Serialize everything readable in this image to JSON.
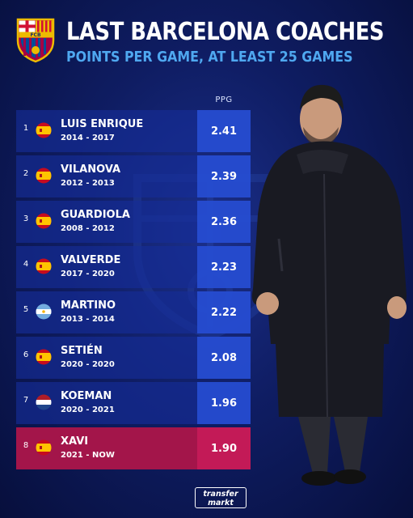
{
  "header": {
    "title": "LAST BARCELONA COACHES",
    "subtitle": "POINTS PER GAME, AT LEAST 25 GAMES",
    "crest_text": "FCB"
  },
  "table": {
    "ppg_header": "PPG"
  },
  "chart_data": {
    "type": "table",
    "title": "LAST BARCELONA COACHES",
    "subtitle": "POINTS PER GAME, AT LEAST 25 GAMES",
    "columns": [
      "PPG"
    ],
    "rows": [
      {
        "rank": "1",
        "name": "LUIS ENRIQUE",
        "years": "2014 - 2017",
        "ppg": "2.41",
        "flag": "spain-flag-icon",
        "highlight": false
      },
      {
        "rank": "2",
        "name": "VILANOVA",
        "years": "2012 - 2013",
        "ppg": "2.39",
        "flag": "spain-flag-icon",
        "highlight": false
      },
      {
        "rank": "3",
        "name": "GUARDIOLA",
        "years": "2008 - 2012",
        "ppg": "2.36",
        "flag": "spain-flag-icon",
        "highlight": false
      },
      {
        "rank": "4",
        "name": "VALVERDE",
        "years": "2017 - 2020",
        "ppg": "2.23",
        "flag": "spain-flag-icon",
        "highlight": false
      },
      {
        "rank": "5",
        "name": "MARTINO",
        "years": "2013 - 2014",
        "ppg": "2.22",
        "flag": "argentina-flag-icon",
        "highlight": false
      },
      {
        "rank": "6",
        "name": "SETIÉN",
        "years": "2020 - 2020",
        "ppg": "2.08",
        "flag": "spain-flag-icon",
        "highlight": false
      },
      {
        "rank": "7",
        "name": "KOEMAN",
        "years": "2020 - 2021",
        "ppg": "1.96",
        "flag": "netherlands-flag-icon",
        "highlight": false
      },
      {
        "rank": "8",
        "name": "XAVI",
        "years": "2021 - NOW",
        "ppg": "1.90",
        "flag": "spain-flag-icon",
        "highlight": true
      }
    ]
  },
  "colors": {
    "row_bg": "#1a3598",
    "ppg_bg": "#2a54d6",
    "highlight_bg": "#a3154a",
    "highlight_ppg_bg": "#c31a57",
    "subtitle": "#4fa8f0"
  },
  "footer": {
    "logo_line1": "transfer",
    "logo_line2": "markt"
  }
}
